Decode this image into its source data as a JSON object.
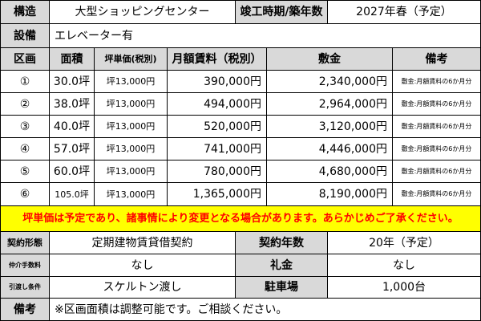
{
  "top": {
    "structure_label": "構造",
    "structure_value": "大型ショッピングセンター",
    "completion_label": "竣工時期/築年数",
    "completion_value": "2027年春（予定）",
    "equipment_label": "設備",
    "equipment_value": "エレベーター有"
  },
  "table": {
    "headers": {
      "section": "区画",
      "area": "面積",
      "unit_price": "坪単価(税別)",
      "rent": "月額賃料（税別）",
      "deposit": "敷金",
      "remarks": "備考"
    },
    "rows": [
      {
        "section": "①",
        "area": "30.0坪",
        "unit_price": "坪13,000円",
        "rent": "390,000円",
        "deposit": "2,340,000円",
        "remarks": "敷金:月額賃料の6か月分"
      },
      {
        "section": "②",
        "area": "38.0坪",
        "unit_price": "坪13,000円",
        "rent": "494,000円",
        "deposit": "2,964,000円",
        "remarks": "敷金:月額賃料の6か月分"
      },
      {
        "section": "③",
        "area": "40.0坪",
        "unit_price": "坪13,000円",
        "rent": "520,000円",
        "deposit": "3,120,000円",
        "remarks": "敷金:月額賃料の6か月分"
      },
      {
        "section": "④",
        "area": "57.0坪",
        "unit_price": "坪13,000円",
        "rent": "741,000円",
        "deposit": "4,446,000円",
        "remarks": "敷金:月額賃料の6か月分"
      },
      {
        "section": "⑤",
        "area": "60.0坪",
        "unit_price": "坪13,000円",
        "rent": "780,000円",
        "deposit": "4,680,000円",
        "remarks": "敷金:月額賃料の6か月分"
      },
      {
        "section": "⑥",
        "area": "105.0坪",
        "unit_price": "坪13,000円",
        "rent": "1,365,000円",
        "deposit": "8,190,000円",
        "remarks": "敷金:月額賃料の6か月分"
      }
    ]
  },
  "notice": "坪単価は予定であり、諸事情により変更となる場合があります。あらかじめご了承ください。",
  "terms": {
    "contract_type_label": "契約形態",
    "contract_type_value": "定期建物賃貸借契約",
    "contract_years_label": "契約年数",
    "contract_years_value": "20年（予定）",
    "broker_fee_label": "仲介手数料",
    "broker_fee_value": "なし",
    "key_money_label": "礼金",
    "key_money_value": "なし",
    "handover_label": "引渡し条件",
    "handover_value": "スケルトン渡し",
    "parking_label": "駐車場",
    "parking_value": "1,000台",
    "remarks_label": "備考",
    "remarks_value": "※区画面積は調整可能です。ご相談ください。"
  },
  "colors": {
    "header_bg": "#d9d9d9",
    "notice_bg": "#ffff00",
    "notice_text": "#ff0000"
  }
}
